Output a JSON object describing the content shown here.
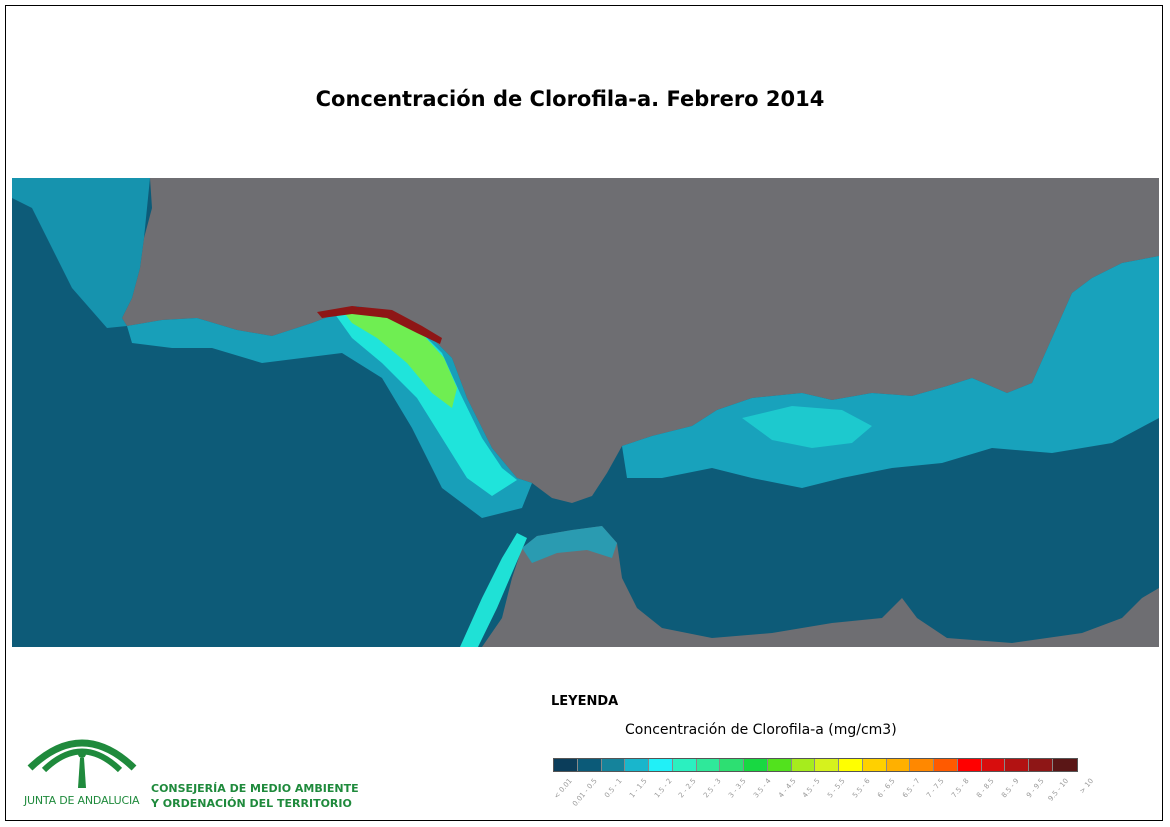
{
  "title": "Concentración de Clorofila-a. Febrero 2014",
  "legend": {
    "heading": "LEYENDA",
    "subtitle": "Concentración de Clorofila-a (mg/cm3)",
    "classes": [
      {
        "label": "< 0.01",
        "color": "#0b3d5a"
      },
      {
        "label": "0.01 - 0.5",
        "color": "#0b5a78"
      },
      {
        "label": "0.5 - 1",
        "color": "#15839b"
      },
      {
        "label": "1 - 1.5",
        "color": "#19b6cc"
      },
      {
        "label": "1.5 - 2",
        "color": "#21f0f7"
      },
      {
        "label": "2 - 2.5",
        "color": "#2bf0c0"
      },
      {
        "label": "2.5 - 3",
        "color": "#2fe89a"
      },
      {
        "label": "3 - 3.5",
        "color": "#2ddf72"
      },
      {
        "label": "3.5 - 4",
        "color": "#18d842"
      },
      {
        "label": "4 - 4.5",
        "color": "#52e21d"
      },
      {
        "label": "4.5 - 5",
        "color": "#a6ec1d"
      },
      {
        "label": "5 - 5.5",
        "color": "#d6f21d"
      },
      {
        "label": "5.5 - 6",
        "color": "#ffff00"
      },
      {
        "label": "6 - 6.5",
        "color": "#ffd000"
      },
      {
        "label": "6.5 - 7",
        "color": "#ffb000"
      },
      {
        "label": "7 - 7.5",
        "color": "#ff8800"
      },
      {
        "label": "7.5 - 8",
        "color": "#ff5a00"
      },
      {
        "label": "8 - 8.5",
        "color": "#ff0000"
      },
      {
        "label": "8.5 - 9",
        "color": "#d80d0d"
      },
      {
        "label": "9 - 9.5",
        "color": "#b21212"
      },
      {
        "label": "9.5 - 10",
        "color": "#8e1616"
      },
      {
        "label": "> 10",
        "color": "#5a1616"
      }
    ]
  },
  "map": {
    "land_color": "#6e6e72",
    "ocean_color": "#0d5b78",
    "coastal_low_color": "#19a6c0",
    "coastal_mid_color": "#21f0e0",
    "coastal_high_color": "#7ef03a",
    "hotspot_color": "#8e1616"
  },
  "branding": {
    "org": "JUNTA DE ANDALUCIA",
    "dept_line1": "CONSEJERÍA DE MEDIO AMBIENTE",
    "dept_line2": "Y ORDENACIÓN DEL TERRITORIO",
    "logo_color": "#1f8a3c"
  }
}
